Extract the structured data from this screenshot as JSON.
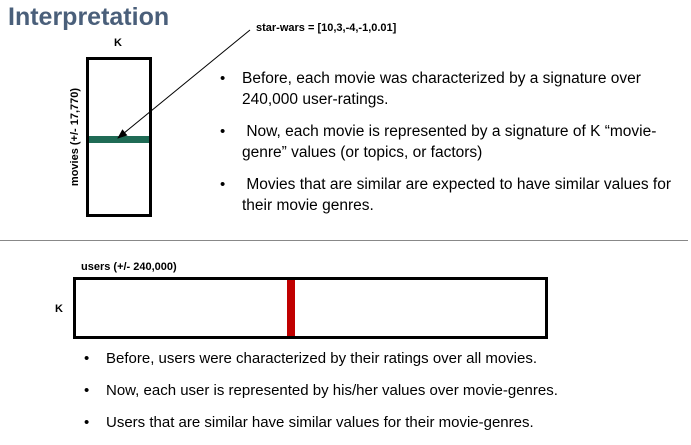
{
  "title": "Interpretation",
  "colors": {
    "title": "#4a5f7a",
    "movie_row": "#1f6b55",
    "user_column": "#c00000",
    "box_border": "#000000"
  },
  "movie_matrix": {
    "top_label": "K",
    "side_label": "movies (+/- 17,770)",
    "annotation": "star-wars = [10,3,-4,-1,0.01]"
  },
  "user_matrix": {
    "top_label": "users (+/- 240,000)",
    "side_label": "K"
  },
  "top_bullets": [
    "Before, each movie was characterized by a signature over 240,000 user-ratings.",
    " Now, each movie is represented by a signature of K “movie-genre” values (or topics, or factors)",
    " Movies that are similar are expected to have similar values for their movie genres."
  ],
  "bottom_bullets": [
    "Before, users were characterized by their ratings over all movies.",
    "Now, each user is represented by his/her values over movie-genres.",
    "Users that are similar have similar values for their movie-genres."
  ],
  "bullet_symbol": "•"
}
